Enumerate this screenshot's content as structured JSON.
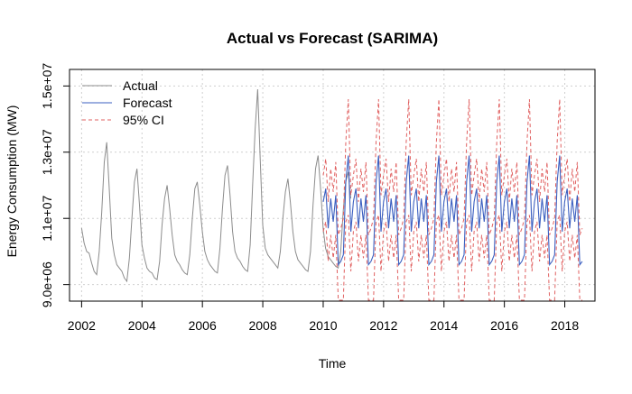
{
  "chart_data": {
    "type": "line",
    "title": "Actual vs Forecast (SARIMA)",
    "xlabel": "Time",
    "ylabel": "Energy Consumption (MW)",
    "xlim": [
      2001.6,
      2019.0
    ],
    "ylim": [
      8500000,
      15500000
    ],
    "x_ticks": [
      2002,
      2004,
      2006,
      2008,
      2010,
      2012,
      2014,
      2016,
      2018
    ],
    "x_tick_labels": [
      "2002",
      "2004",
      "2006",
      "2008",
      "2010",
      "2012",
      "2014",
      "2016",
      "2018"
    ],
    "y_ticks": [
      9000000,
      11000000,
      13000000,
      15000000
    ],
    "y_tick_labels": [
      "9.0e+06",
      "1.1e+07",
      "1.3e+07",
      "1.5e+07"
    ],
    "grid": true,
    "legend_position": "top-left",
    "series": [
      {
        "name": "Actual",
        "color": "#8c8c8c",
        "dash": "solid",
        "start": 2002.0,
        "step": 0.0833,
        "values": [
          10700000,
          10250000,
          10000000,
          9950000,
          9650000,
          9400000,
          9300000,
          10000000,
          11200000,
          12700000,
          13300000,
          11900000,
          10400000,
          9900000,
          9600000,
          9500000,
          9400000,
          9200000,
          9100000,
          9800000,
          11000000,
          12100000,
          12500000,
          11400000,
          10200000,
          9800000,
          9500000,
          9400000,
          9350000,
          9200000,
          9150000,
          9700000,
          10800000,
          11600000,
          12000000,
          11300000,
          10500000,
          9900000,
          9700000,
          9600000,
          9450000,
          9350000,
          9300000,
          9900000,
          11000000,
          11900000,
          12100000,
          11400000,
          10600000,
          10000000,
          9750000,
          9600000,
          9500000,
          9400000,
          9350000,
          10100000,
          11300000,
          12300000,
          12600000,
          11700000,
          10600000,
          10000000,
          9800000,
          9700000,
          9550000,
          9450000,
          9400000,
          10200000,
          12000000,
          13700000,
          14900000,
          12800000,
          10800000,
          10100000,
          9900000,
          9800000,
          9700000,
          9600000,
          9500000,
          10000000,
          11000000,
          11800000,
          12200000,
          11500000,
          10600000,
          10000000,
          9750000,
          9650000,
          9550000,
          9450000,
          9400000,
          10000000,
          11400000,
          12500000,
          12900000,
          11900000,
          10700000,
          10100000,
          9850000,
          9750000,
          9650000,
          9550000,
          9500000,
          10000000,
          11200000,
          12100000,
          12400000,
          11600000
        ]
      },
      {
        "name": "Forecast",
        "color": "#3b5fc0",
        "dash": "solid",
        "start": 2010.0,
        "step": 0.0833,
        "seasonal_profile": [
          11500000,
          11900000,
          10700000,
          11600000,
          10900000,
          11700000,
          9600000,
          9700000,
          9900000,
          12100000,
          12900000,
          10600000
        ]
      },
      {
        "name": "95% CI",
        "color": "#e06060",
        "dash": "dashed",
        "start": 2010.0,
        "step": 0.0833,
        "upper_profile": [
          12300000,
          12800000,
          11500000,
          12500000,
          11800000,
          12700000,
          10500000,
          10700000,
          11000000,
          13300000,
          14600000,
          11700000
        ],
        "lower_profile": [
          10600000,
          10900000,
          9700000,
          10500000,
          9800000,
          10500000,
          8500000,
          8500000,
          8500000,
          10900000,
          11100000,
          9400000
        ]
      }
    ]
  }
}
